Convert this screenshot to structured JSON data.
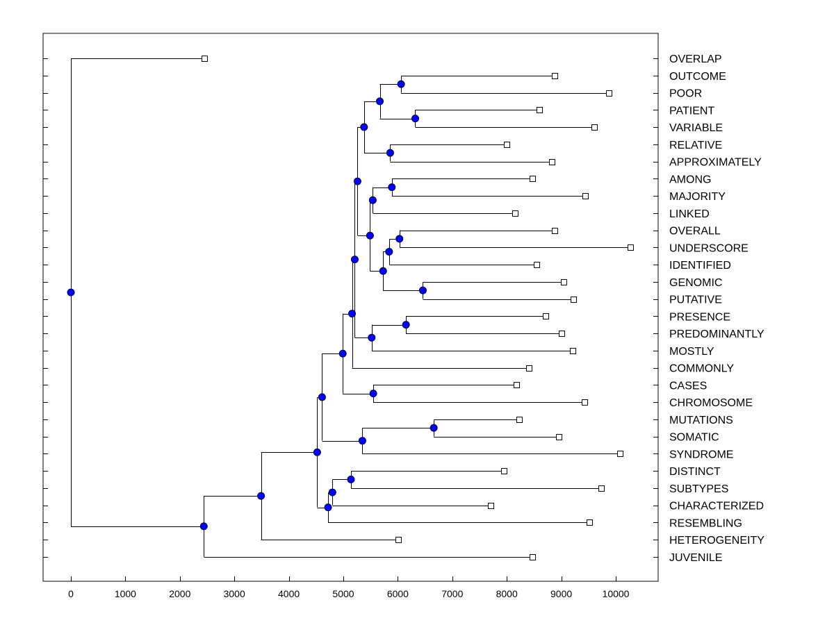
{
  "chart_data": {
    "type": "dendrogram",
    "title": "",
    "xlabel": "",
    "ylabel": "",
    "xlim": [
      -500,
      10800
    ],
    "x_ticks": [
      "0",
      "1000",
      "2000",
      "3000",
      "4000",
      "5000",
      "6000",
      "7000",
      "8000",
      "9000",
      "10000"
    ],
    "x_tick_values": [
      0,
      1000,
      2000,
      3000,
      4000,
      5000,
      6000,
      7000,
      8000,
      9000,
      10000
    ],
    "leaves": [
      "OVERLAP",
      "OUTCOME",
      "POOR",
      "PATIENT",
      "VARIABLE",
      "RELATIVE",
      "APPROXIMATELY",
      "AMONG",
      "MAJORITY",
      "LINKED",
      "OVERALL",
      "UNDERSCORE",
      "IDENTIFIED",
      "GENOMIC",
      "PUTATIVE",
      "PRESENCE",
      "PREDOMINANTLY",
      "MOSTLY",
      "COMMONLY",
      "CASES",
      "CHROMOSOME",
      "MUTATIONS",
      "SOMATIC",
      "SYNDROME",
      "DISTINCT",
      "SUBTYPES",
      "CHARACTERIZED",
      "RESEMBLING",
      "HETEROGENEITY",
      "JUVENILE"
    ],
    "leaf_values": [
      2450,
      8880,
      9870,
      8600,
      9600,
      8000,
      8830,
      8470,
      9440,
      8150,
      8880,
      10270,
      8550,
      9040,
      9220,
      8710,
      9000,
      9210,
      8400,
      8170,
      9420,
      8230,
      8950,
      10080,
      7950,
      9730,
      7700,
      9520,
      6010,
      8470
    ],
    "nodes": [
      {
        "id": "n1",
        "value": 6060,
        "children": [
          "l1",
          "l2"
        ]
      },
      {
        "id": "n2",
        "value": 6320,
        "children": [
          "l3",
          "l4"
        ]
      },
      {
        "id": "n3",
        "value": 5670,
        "children": [
          "n1",
          "n2"
        ]
      },
      {
        "id": "n4",
        "value": 5860,
        "children": [
          "l5",
          "l6"
        ]
      },
      {
        "id": "n5",
        "value": 5380,
        "children": [
          "n3",
          "n4"
        ]
      },
      {
        "id": "n6",
        "value": 5890,
        "children": [
          "l7",
          "l8"
        ]
      },
      {
        "id": "n7",
        "value": 5540,
        "children": [
          "n6",
          "l9"
        ]
      },
      {
        "id": "n8",
        "value": 6030,
        "children": [
          "l10",
          "l11"
        ]
      },
      {
        "id": "n9",
        "value": 5840,
        "children": [
          "n8",
          "l12"
        ]
      },
      {
        "id": "n10",
        "value": 6460,
        "children": [
          "l13",
          "l14"
        ]
      },
      {
        "id": "n11",
        "value": 5730,
        "children": [
          "n9",
          "n10"
        ]
      },
      {
        "id": "n12",
        "value": 5490,
        "children": [
          "n7",
          "n11"
        ]
      },
      {
        "id": "n13",
        "value": 5260,
        "children": [
          "n5",
          "n12"
        ]
      },
      {
        "id": "n14",
        "value": 6150,
        "children": [
          "l15",
          "l16"
        ]
      },
      {
        "id": "n15",
        "value": 5520,
        "children": [
          "n14",
          "l17"
        ]
      },
      {
        "id": "n16",
        "value": 5210,
        "children": [
          "n13",
          "n15"
        ]
      },
      {
        "id": "n17",
        "value": 5160,
        "children": [
          "n16",
          "l18"
        ]
      },
      {
        "id": "n18",
        "value": 5550,
        "children": [
          "l19",
          "l20"
        ]
      },
      {
        "id": "n19",
        "value": 4990,
        "children": [
          "n17",
          "n18"
        ]
      },
      {
        "id": "n20",
        "value": 6660,
        "children": [
          "l21",
          "l22"
        ]
      },
      {
        "id": "n21",
        "value": 5350,
        "children": [
          "n20",
          "l23"
        ]
      },
      {
        "id": "n22",
        "value": 4610,
        "children": [
          "n19",
          "n21"
        ]
      },
      {
        "id": "n23",
        "value": 5140,
        "children": [
          "l24",
          "l25"
        ]
      },
      {
        "id": "n24",
        "value": 4800,
        "children": [
          "n23",
          "l26"
        ]
      },
      {
        "id": "n25",
        "value": 4720,
        "children": [
          "n24",
          "l27"
        ]
      },
      {
        "id": "n26",
        "value": 4520,
        "children": [
          "n22",
          "n25"
        ]
      },
      {
        "id": "n27",
        "value": 3490,
        "children": [
          "n26",
          "l28"
        ]
      },
      {
        "id": "n28",
        "value": 2440,
        "children": [
          "n27",
          "l29"
        ]
      },
      {
        "id": "n29",
        "value": 0,
        "children": [
          "l0",
          "n28"
        ]
      }
    ],
    "colors": {
      "node_fill": "#0000ff",
      "leaf_fill": "#ffffff",
      "line": "#000000"
    }
  }
}
